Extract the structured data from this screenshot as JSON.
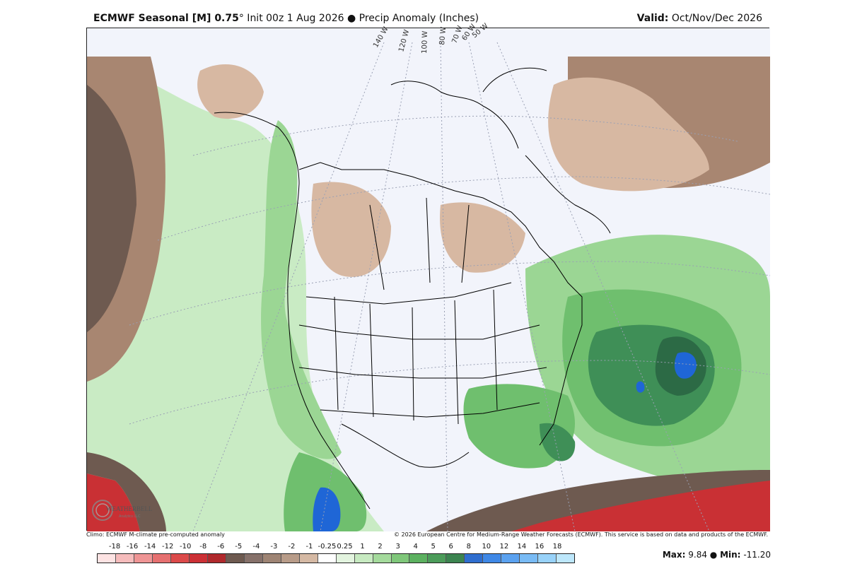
{
  "header": {
    "model_bold": "ECMWF Seasonal [M] 0.75",
    "degree": "°",
    "init_text": " Init 00z 1 Aug 2026",
    "bullet": " ● ",
    "field_text": "Precip Anomaly (Inches)",
    "valid_label": "Valid:",
    "valid_value": " Oct/Nov/Dec 2026"
  },
  "map": {
    "longitude_labels": [
      "140 W",
      "120 W",
      "100 W",
      "80 W",
      "70 W",
      "60 W",
      "50 W"
    ],
    "colors": {
      "ocean_background": "#f2f4fb",
      "light_green": "#c9ebc4",
      "mid_green": "#9bd694",
      "green": "#6fbf6e",
      "dark_green": "#3f8f57",
      "darker_green": "#2c6a45",
      "blue": "#1f66d6",
      "tan": "#d7b8a2",
      "brown": "#a88671",
      "dark_brown": "#6e5a50",
      "red": "#c93034"
    }
  },
  "logo": {
    "text": "WEATHERBELL",
    "subtext": "Analytics LLC"
  },
  "footer": {
    "climo_note": "Climo: ECMWF M-climate pre-computed anomaly",
    "copyright": "© 2026 European Centre for Medium-Range Weather Forecasts (ECMWF). This service is based on data and products of the ECMWF."
  },
  "colorbar": {
    "labels": [
      "-18",
      "-16",
      "-14",
      "-12",
      "-10",
      "-8",
      "-6",
      "-5",
      "-4",
      "-3",
      "-2",
      "-1",
      "-0.25",
      "0.25",
      "1",
      "2",
      "3",
      "4",
      "5",
      "6",
      "8",
      "10",
      "12",
      "14",
      "16",
      "18"
    ],
    "colors": [
      "#fde3e3",
      "#f6bcbc",
      "#ef9595",
      "#e67070",
      "#dc4a4a",
      "#cc3035",
      "#b0292c",
      "#6e5a50",
      "#86716a",
      "#9e8474",
      "#b89c89",
      "#d5b9a4",
      "#ffffff",
      "#e3f4df",
      "#c7eac1",
      "#a4da9c",
      "#7fc77a",
      "#5cb160",
      "#4c9c5a",
      "#3c8450",
      "#2f6ecf",
      "#3f88e6",
      "#5ba2f0",
      "#79bbf5",
      "#98d2f9",
      "#bde7fb"
    ]
  },
  "stats": {
    "max_label": "Max:",
    "max_value": "9.84",
    "separator": " ● ",
    "min_label": "Min:",
    "min_value": "-11.20"
  }
}
